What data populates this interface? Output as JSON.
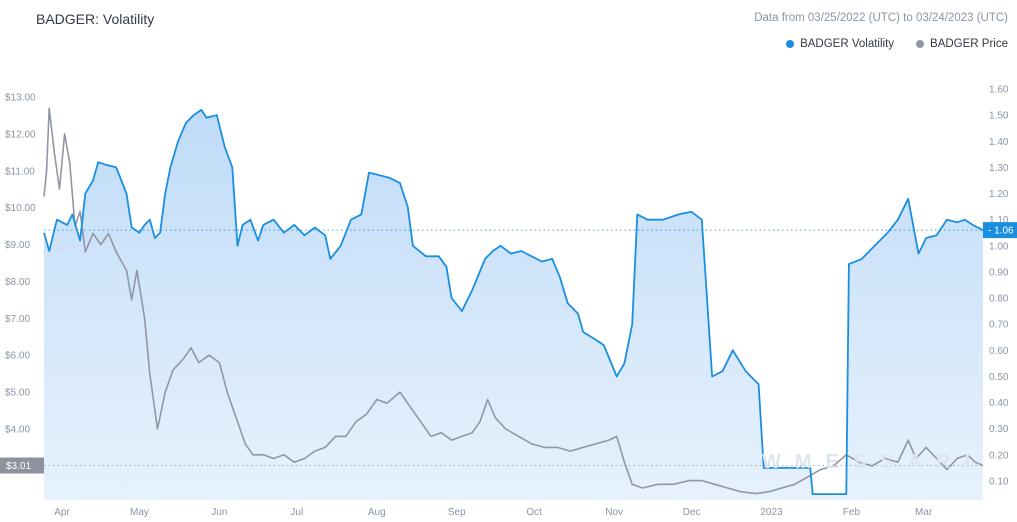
{
  "header": {
    "title": "BADGER: Volatility",
    "range_note": "Data from 03/25/2022 (UTC) to 03/24/2023 (UTC)"
  },
  "legend": {
    "volatility_label": "BADGER Volatility",
    "price_label": "BADGER Price"
  },
  "watermark": "WMESSARI",
  "colors": {
    "volatility": "#1a8fe0",
    "volatility_fill_top": "#bcd9f7",
    "volatility_fill_bottom": "#e4f0fd",
    "price": "#9196a4",
    "axis_text": "#8a95a5"
  },
  "chart_data": {
    "type": "line",
    "title": "BADGER: Volatility",
    "x_tick_labels": [
      "Apr",
      "May",
      "Jun",
      "Jul",
      "Aug",
      "Sep",
      "Oct",
      "Nov",
      "Dec",
      "2023",
      "Feb",
      "Mar"
    ],
    "x_range": [
      "2022-03-25",
      "2023-03-24"
    ],
    "left_axis": {
      "ticks": [
        "$4.00",
        "$5.00",
        "$6.00",
        "$7.00",
        "$8.00",
        "$9.00",
        "$10.00",
        "$11.00",
        "$12.00",
        "$13.00"
      ],
      "range": [
        2.1,
        13.25
      ]
    },
    "right_axis": {
      "ticks": [
        "0.10",
        "0.20",
        "0.30",
        "0.40",
        "0.50",
        "0.60",
        "0.70",
        "0.80",
        "0.90",
        "1.00",
        "1.10",
        "1.20",
        "1.30",
        "1.40",
        "1.50",
        "1.60"
      ],
      "range": [
        0.0,
        1.64
      ]
    },
    "current_price_label": "$3.01",
    "current_price_value": 3.01,
    "current_volatility_label": "1.06",
    "current_volatility_value": 1.06,
    "series": [
      {
        "name": "BADGER Volatility",
        "axis": "right",
        "style": "area",
        "points": [
          [
            "2022-03-25",
            1.05
          ],
          [
            "2022-03-27",
            0.98
          ],
          [
            "2022-03-30",
            1.1
          ],
          [
            "2022-04-03",
            1.08
          ],
          [
            "2022-04-05",
            1.12
          ],
          [
            "2022-04-08",
            1.02
          ],
          [
            "2022-04-10",
            1.2
          ],
          [
            "2022-04-13",
            1.25
          ],
          [
            "2022-04-15",
            1.32
          ],
          [
            "2022-04-18",
            1.31
          ],
          [
            "2022-04-22",
            1.3
          ],
          [
            "2022-04-26",
            1.2
          ],
          [
            "2022-04-28",
            1.07
          ],
          [
            "2022-05-01",
            1.05
          ],
          [
            "2022-05-03",
            1.08
          ],
          [
            "2022-05-05",
            1.1
          ],
          [
            "2022-05-07",
            1.03
          ],
          [
            "2022-05-09",
            1.05
          ],
          [
            "2022-05-11",
            1.2
          ],
          [
            "2022-05-13",
            1.3
          ],
          [
            "2022-05-16",
            1.4
          ],
          [
            "2022-05-19",
            1.47
          ],
          [
            "2022-05-22",
            1.5
          ],
          [
            "2022-05-25",
            1.52
          ],
          [
            "2022-05-27",
            1.49
          ],
          [
            "2022-05-31",
            1.5
          ],
          [
            "2022-06-03",
            1.38
          ],
          [
            "2022-06-06",
            1.3
          ],
          [
            "2022-06-08",
            1.0
          ],
          [
            "2022-06-10",
            1.08
          ],
          [
            "2022-06-13",
            1.1
          ],
          [
            "2022-06-16",
            1.02
          ],
          [
            "2022-06-18",
            1.08
          ],
          [
            "2022-06-22",
            1.1
          ],
          [
            "2022-06-26",
            1.05
          ],
          [
            "2022-06-30",
            1.08
          ],
          [
            "2022-07-04",
            1.04
          ],
          [
            "2022-07-08",
            1.07
          ],
          [
            "2022-07-12",
            1.04
          ],
          [
            "2022-07-14",
            0.95
          ],
          [
            "2022-07-18",
            1.0
          ],
          [
            "2022-07-22",
            1.1
          ],
          [
            "2022-07-26",
            1.12
          ],
          [
            "2022-07-29",
            1.28
          ],
          [
            "2022-08-02",
            1.27
          ],
          [
            "2022-08-06",
            1.26
          ],
          [
            "2022-08-10",
            1.24
          ],
          [
            "2022-08-13",
            1.15
          ],
          [
            "2022-08-15",
            1.0
          ],
          [
            "2022-08-20",
            0.96
          ],
          [
            "2022-08-25",
            0.96
          ],
          [
            "2022-08-28",
            0.92
          ],
          [
            "2022-08-30",
            0.8
          ],
          [
            "2022-09-03",
            0.75
          ],
          [
            "2022-09-07",
            0.83
          ],
          [
            "2022-09-12",
            0.95
          ],
          [
            "2022-09-15",
            0.98
          ],
          [
            "2022-09-18",
            1.0
          ],
          [
            "2022-09-22",
            0.97
          ],
          [
            "2022-09-26",
            0.98
          ],
          [
            "2022-09-30",
            0.96
          ],
          [
            "2022-10-04",
            0.94
          ],
          [
            "2022-10-08",
            0.95
          ],
          [
            "2022-10-11",
            0.88
          ],
          [
            "2022-10-14",
            0.78
          ],
          [
            "2022-10-18",
            0.74
          ],
          [
            "2022-10-20",
            0.67
          ],
          [
            "2022-10-25",
            0.64
          ],
          [
            "2022-10-28",
            0.62
          ],
          [
            "2022-11-02",
            0.5
          ],
          [
            "2022-11-05",
            0.55
          ],
          [
            "2022-11-08",
            0.7
          ],
          [
            "2022-11-10",
            1.12
          ],
          [
            "2022-11-14",
            1.1
          ],
          [
            "2022-11-20",
            1.1
          ],
          [
            "2022-11-26",
            1.12
          ],
          [
            "2022-12-01",
            1.13
          ],
          [
            "2022-12-05",
            1.1
          ],
          [
            "2022-12-07",
            0.8
          ],
          [
            "2022-12-09",
            0.5
          ],
          [
            "2022-12-13",
            0.52
          ],
          [
            "2022-12-17",
            0.6
          ],
          [
            "2022-12-22",
            0.52
          ],
          [
            "2022-12-27",
            0.47
          ],
          [
            "2022-12-29",
            0.15
          ],
          [
            "2023-01-05",
            0.15
          ],
          [
            "2023-01-16",
            0.15
          ],
          [
            "2023-01-17",
            0.05
          ],
          [
            "2023-01-30",
            0.05
          ],
          [
            "2023-01-31",
            0.93
          ],
          [
            "2023-02-05",
            0.95
          ],
          [
            "2023-02-10",
            1.0
          ],
          [
            "2023-02-15",
            1.05
          ],
          [
            "2023-02-19",
            1.1
          ],
          [
            "2023-02-23",
            1.18
          ],
          [
            "2023-02-27",
            0.97
          ],
          [
            "2023-03-02",
            1.03
          ],
          [
            "2023-03-06",
            1.04
          ],
          [
            "2023-03-10",
            1.1
          ],
          [
            "2023-03-14",
            1.09
          ],
          [
            "2023-03-17",
            1.1
          ],
          [
            "2023-03-20",
            1.08
          ],
          [
            "2023-03-24",
            1.06
          ]
        ]
      },
      {
        "name": "BADGER Price",
        "axis": "left",
        "style": "line",
        "points": [
          [
            "2022-03-25",
            10.3
          ],
          [
            "2022-03-26",
            11.0
          ],
          [
            "2022-03-27",
            12.7
          ],
          [
            "2022-03-29",
            11.5
          ],
          [
            "2022-03-31",
            10.5
          ],
          [
            "2022-04-02",
            12.0
          ],
          [
            "2022-04-04",
            11.2
          ],
          [
            "2022-04-06",
            9.5
          ],
          [
            "2022-04-08",
            9.9
          ],
          [
            "2022-04-10",
            8.8
          ],
          [
            "2022-04-13",
            9.3
          ],
          [
            "2022-04-16",
            9.0
          ],
          [
            "2022-04-19",
            9.3
          ],
          [
            "2022-04-22",
            8.8
          ],
          [
            "2022-04-26",
            8.3
          ],
          [
            "2022-04-28",
            7.5
          ],
          [
            "2022-04-30",
            8.3
          ],
          [
            "2022-05-03",
            7.0
          ],
          [
            "2022-05-05",
            5.5
          ],
          [
            "2022-05-08",
            4.0
          ],
          [
            "2022-05-11",
            5.0
          ],
          [
            "2022-05-14",
            5.6
          ],
          [
            "2022-05-18",
            5.9
          ],
          [
            "2022-05-21",
            6.2
          ],
          [
            "2022-05-24",
            5.8
          ],
          [
            "2022-05-28",
            6.0
          ],
          [
            "2022-06-01",
            5.8
          ],
          [
            "2022-06-04",
            5.0
          ],
          [
            "2022-06-08",
            4.2
          ],
          [
            "2022-06-11",
            3.6
          ],
          [
            "2022-06-14",
            3.3
          ],
          [
            "2022-06-18",
            3.3
          ],
          [
            "2022-06-22",
            3.2
          ],
          [
            "2022-06-26",
            3.3
          ],
          [
            "2022-06-30",
            3.1
          ],
          [
            "2022-07-04",
            3.2
          ],
          [
            "2022-07-08",
            3.4
          ],
          [
            "2022-07-12",
            3.5
          ],
          [
            "2022-07-16",
            3.8
          ],
          [
            "2022-07-20",
            3.8
          ],
          [
            "2022-07-24",
            4.2
          ],
          [
            "2022-07-28",
            4.4
          ],
          [
            "2022-08-01",
            4.8
          ],
          [
            "2022-08-05",
            4.7
          ],
          [
            "2022-08-10",
            5.0
          ],
          [
            "2022-08-14",
            4.6
          ],
          [
            "2022-08-18",
            4.2
          ],
          [
            "2022-08-22",
            3.8
          ],
          [
            "2022-08-26",
            3.9
          ],
          [
            "2022-08-30",
            3.7
          ],
          [
            "2022-09-03",
            3.8
          ],
          [
            "2022-09-07",
            3.9
          ],
          [
            "2022-09-10",
            4.2
          ],
          [
            "2022-09-13",
            4.8
          ],
          [
            "2022-09-16",
            4.3
          ],
          [
            "2022-09-20",
            4.0
          ],
          [
            "2022-09-25",
            3.8
          ],
          [
            "2022-09-30",
            3.6
          ],
          [
            "2022-10-05",
            3.5
          ],
          [
            "2022-10-10",
            3.5
          ],
          [
            "2022-10-15",
            3.4
          ],
          [
            "2022-10-20",
            3.5
          ],
          [
            "2022-10-25",
            3.6
          ],
          [
            "2022-10-30",
            3.7
          ],
          [
            "2022-11-02",
            3.8
          ],
          [
            "2022-11-05",
            3.1
          ],
          [
            "2022-11-08",
            2.5
          ],
          [
            "2022-11-12",
            2.4
          ],
          [
            "2022-11-18",
            2.5
          ],
          [
            "2022-11-24",
            2.5
          ],
          [
            "2022-11-30",
            2.6
          ],
          [
            "2022-12-05",
            2.6
          ],
          [
            "2022-12-10",
            2.5
          ],
          [
            "2022-12-15",
            2.4
          ],
          [
            "2022-12-20",
            2.3
          ],
          [
            "2022-12-26",
            2.25
          ],
          [
            "2022-12-31",
            2.3
          ],
          [
            "2023-01-05",
            2.4
          ],
          [
            "2023-01-10",
            2.5
          ],
          [
            "2023-01-15",
            2.7
          ],
          [
            "2023-01-20",
            2.9
          ],
          [
            "2023-01-25",
            3.0
          ],
          [
            "2023-01-30",
            3.3
          ],
          [
            "2023-02-04",
            3.1
          ],
          [
            "2023-02-09",
            3.0
          ],
          [
            "2023-02-14",
            3.2
          ],
          [
            "2023-02-19",
            3.1
          ],
          [
            "2023-02-23",
            3.7
          ],
          [
            "2023-02-26",
            3.2
          ],
          [
            "2023-03-02",
            3.5
          ],
          [
            "2023-03-06",
            3.2
          ],
          [
            "2023-03-10",
            2.9
          ],
          [
            "2023-03-14",
            3.2
          ],
          [
            "2023-03-18",
            3.3
          ],
          [
            "2023-03-21",
            3.1
          ],
          [
            "2023-03-24",
            3.01
          ]
        ]
      }
    ],
    "reference_lines": [
      {
        "axis": "right",
        "value": 1.06,
        "style": "dotted",
        "color": "#1a8fe0"
      },
      {
        "axis": "left",
        "value": 3.01,
        "style": "dotted",
        "color": "#9196a4"
      }
    ],
    "grid": false,
    "legend_position": "top-right"
  }
}
